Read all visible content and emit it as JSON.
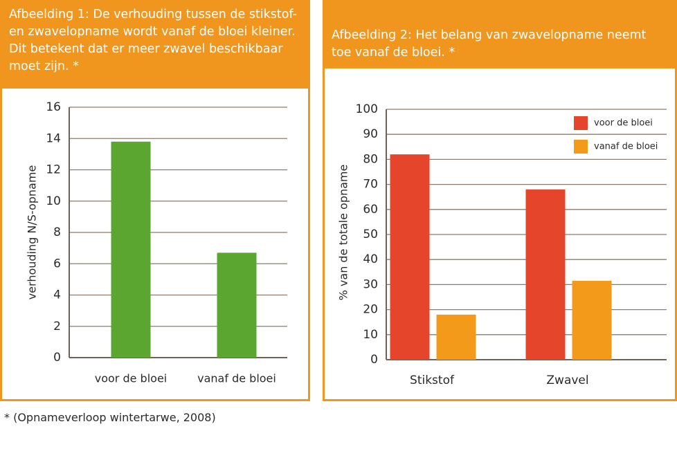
{
  "figure1": {
    "title": "Afbeelding 1: De verhouding tussen de stikstof- en zwavelopname wordt vanaf de bloei kleiner. Dit betekent dat er meer zwavel beschikbaar moet zijn. *"
  },
  "figure2": {
    "title": "Afbeelding 2: Het belang van zwavelopname neemt toe vanaf de bloei. *"
  },
  "footnote": "* (Opnameverloop wintertarwe, 2008)",
  "chart_data": [
    {
      "type": "bar",
      "categories": [
        "voor de bloei",
        "vanaf de bloei"
      ],
      "values": [
        13.8,
        6.7
      ],
      "ylabel": "verhouding N/S-opname",
      "xlabel": "",
      "ylim": [
        0,
        16
      ],
      "yticks": [
        "0",
        "2",
        "4",
        "6",
        "8",
        "10",
        "12",
        "14",
        "16"
      ],
      "grid": true,
      "color": "#5aa630"
    },
    {
      "type": "bar",
      "categories": [
        "Stikstof",
        "Zwavel"
      ],
      "series": [
        {
          "name": "voor de bloei",
          "values": [
            82,
            68
          ],
          "color": "#e5452a"
        },
        {
          "name": "vanaf de bloei",
          "values": [
            18,
            31.5
          ],
          "color": "#f39a1b"
        }
      ],
      "ylabel": "% van de totale opname",
      "xlabel": "",
      "ylim": [
        0,
        100
      ],
      "yticks": [
        "0",
        "10",
        "20",
        "30",
        "40",
        "50",
        "60",
        "70",
        "80",
        "90",
        "100"
      ],
      "grid": true,
      "legend": "top-right"
    }
  ]
}
